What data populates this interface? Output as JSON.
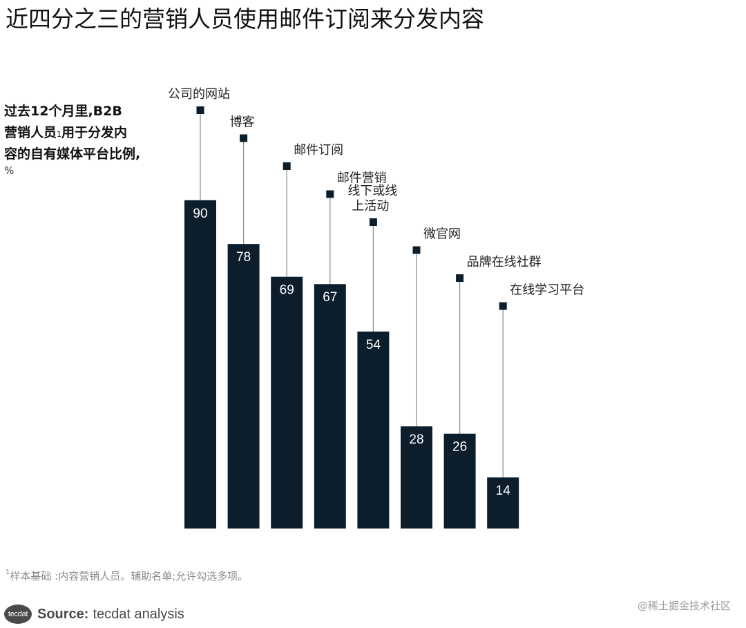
{
  "title": "近四分之三的营销人员使用邮件订阅来分发内容",
  "subtitle": {
    "line1": "过去12个月里,B2B",
    "line2_main": "营销人员",
    "line2_sup": "1",
    "line2_rest": "用于分发内",
    "line3": "容的自有媒体平台比例,",
    "unit": "%"
  },
  "chart_data": {
    "type": "bar",
    "categories": [
      "公司的网站",
      "博客",
      "邮件订阅",
      "邮件营销",
      "线下或线上活动",
      "微官网",
      "品牌在线社群",
      "在线学习平台"
    ],
    "category_label_lines": [
      [
        "公司的网站"
      ],
      [
        "博客"
      ],
      [
        "邮件订阅"
      ],
      [
        "邮件营销"
      ],
      [
        "线下或线",
        "上活动"
      ],
      [
        "微官网"
      ],
      [
        "品牌在线社群"
      ],
      [
        "在线学习平台"
      ]
    ],
    "values": [
      90,
      78,
      69,
      67,
      54,
      28,
      26,
      14
    ],
    "ylim": [
      0,
      100
    ],
    "ylabel": "%",
    "grid": false,
    "legend": "none",
    "bar_color": "#0c1e2c",
    "label_color": "#ffffff",
    "stem_color": "#8a9297"
  },
  "footnote": {
    "sup": "1",
    "text": "样本基础 :内容营销人员。辅助名单;允许勾选多项。"
  },
  "source": {
    "logo_text": "tecdat",
    "label": "Source:",
    "text": "tecdat analysis"
  },
  "watermark": "@稀土掘金技术社区"
}
